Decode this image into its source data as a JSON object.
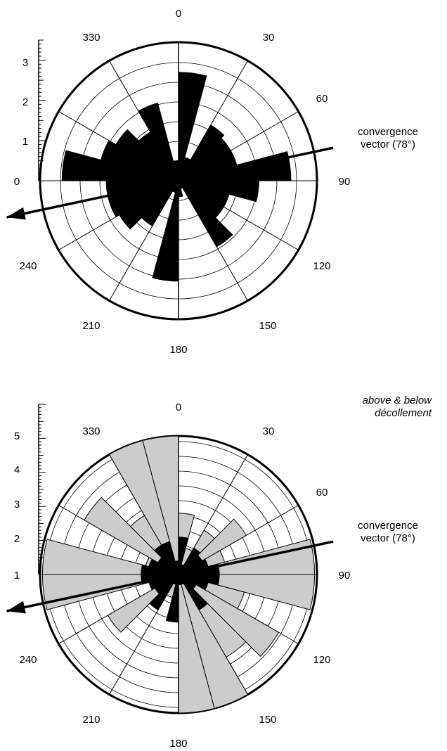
{
  "chart_data": [
    {
      "type": "rose",
      "angle_labels": [
        "0",
        "30",
        "60",
        "90",
        "120",
        "150",
        "180",
        "210",
        "240",
        "0",
        "330"
      ],
      "radial_ticks": [
        "3",
        "2",
        "1",
        "0"
      ],
      "radial_axis": {
        "min": 0,
        "max": 3.5
      },
      "bin_width_deg": 15,
      "series": [
        {
          "color": "#000000",
          "bins": [
            {
              "start": 0,
              "end": 15,
              "value": 2.7
            },
            {
              "start": 15,
              "end": 30,
              "value": 0.6
            },
            {
              "start": 30,
              "end": 45,
              "value": 1.6
            },
            {
              "start": 45,
              "end": 60,
              "value": 1.5
            },
            {
              "start": 60,
              "end": 75,
              "value": 1.5
            },
            {
              "start": 75,
              "end": 90,
              "value": 2.8
            },
            {
              "start": 90,
              "end": 105,
              "value": 2.0
            },
            {
              "start": 105,
              "end": 120,
              "value": 1.3
            },
            {
              "start": 120,
              "end": 135,
              "value": 1.3
            },
            {
              "start": 135,
              "end": 150,
              "value": 1.9
            },
            {
              "start": 150,
              "end": 165,
              "value": 0.2
            },
            {
              "start": 165,
              "end": 180,
              "value": 0.4
            },
            {
              "start": 180,
              "end": 195,
              "value": 2.5
            },
            {
              "start": 195,
              "end": 210,
              "value": 0.3
            },
            {
              "start": 210,
              "end": 225,
              "value": 1.3
            },
            {
              "start": 225,
              "end": 240,
              "value": 1.7
            },
            {
              "start": 240,
              "end": 255,
              "value": 1.8
            },
            {
              "start": 255,
              "end": 270,
              "value": 1.8
            },
            {
              "start": 270,
              "end": 285,
              "value": 2.9
            },
            {
              "start": 285,
              "end": 300,
              "value": 2.0
            },
            {
              "start": 300,
              "end": 315,
              "value": 1.8
            },
            {
              "start": 315,
              "end": 330,
              "value": 1.4
            },
            {
              "start": 330,
              "end": 345,
              "value": 2.0
            },
            {
              "start": 345,
              "end": 360,
              "value": 0.5
            }
          ]
        }
      ],
      "convergence_vector": {
        "label_line1": "convergence",
        "label_line2": "vector (78°)",
        "azimuth_deg": 78
      }
    },
    {
      "type": "rose",
      "subtitle_line1": "above & below",
      "subtitle_line2": "décollement",
      "angle_labels": [
        "0",
        "30",
        "60",
        "90",
        "120",
        "150",
        "180",
        "210",
        "240",
        "1",
        "330"
      ],
      "radial_ticks": [
        "5",
        "4",
        "3",
        "2",
        "1"
      ],
      "radial_axis": {
        "min": 0,
        "max": 5
      },
      "bin_width_deg": 15,
      "series": [
        {
          "color": "#cccccc",
          "bins": [
            {
              "start": 0,
              "end": 15,
              "value": 1.8
            },
            {
              "start": 15,
              "end": 30,
              "value": 0.8
            },
            {
              "start": 30,
              "end": 45,
              "value": 1.5
            },
            {
              "start": 45,
              "end": 60,
              "value": 2.3
            },
            {
              "start": 60,
              "end": 75,
              "value": 1.4
            },
            {
              "start": 75,
              "end": 90,
              "value": 4.0
            },
            {
              "start": 90,
              "end": 105,
              "value": 4.0
            },
            {
              "start": 105,
              "end": 120,
              "value": 2.0
            },
            {
              "start": 120,
              "end": 135,
              "value": 3.4
            },
            {
              "start": 135,
              "end": 150,
              "value": 2.8
            },
            {
              "start": 150,
              "end": 165,
              "value": 4.8
            },
            {
              "start": 165,
              "end": 180,
              "value": 4.8
            },
            {
              "start": 180,
              "end": 195,
              "value": 0.9
            },
            {
              "start": 195,
              "end": 210,
              "value": 0.7
            },
            {
              "start": 210,
              "end": 225,
              "value": 1.0
            },
            {
              "start": 225,
              "end": 240,
              "value": 2.4
            },
            {
              "start": 240,
              "end": 255,
              "value": 0.6
            },
            {
              "start": 255,
              "end": 270,
              "value": 4.0
            },
            {
              "start": 270,
              "end": 285,
              "value": 4.0
            },
            {
              "start": 285,
              "end": 300,
              "value": 1.0
            },
            {
              "start": 300,
              "end": 315,
              "value": 3.2
            },
            {
              "start": 315,
              "end": 330,
              "value": 2.0
            },
            {
              "start": 330,
              "end": 345,
              "value": 4.8
            },
            {
              "start": 345,
              "end": 360,
              "value": 4.8
            }
          ]
        },
        {
          "color": "#000000",
          "bins": [
            {
              "start": 0,
              "end": 15,
              "value": 1.1
            },
            {
              "start": 15,
              "end": 30,
              "value": 0.3
            },
            {
              "start": 30,
              "end": 45,
              "value": 0.9
            },
            {
              "start": 45,
              "end": 60,
              "value": 0.8
            },
            {
              "start": 60,
              "end": 75,
              "value": 0.9
            },
            {
              "start": 75,
              "end": 90,
              "value": 1.2
            },
            {
              "start": 90,
              "end": 105,
              "value": 1.2
            },
            {
              "start": 105,
              "end": 120,
              "value": 0.9
            },
            {
              "start": 120,
              "end": 135,
              "value": 0.6
            },
            {
              "start": 135,
              "end": 150,
              "value": 1.2
            },
            {
              "start": 150,
              "end": 165,
              "value": 0.3
            },
            {
              "start": 165,
              "end": 180,
              "value": 0.3
            },
            {
              "start": 180,
              "end": 195,
              "value": 1.4
            },
            {
              "start": 195,
              "end": 210,
              "value": 0.3
            },
            {
              "start": 210,
              "end": 225,
              "value": 1.2
            },
            {
              "start": 225,
              "end": 240,
              "value": 0.8
            },
            {
              "start": 240,
              "end": 255,
              "value": 0.9
            },
            {
              "start": 255,
              "end": 270,
              "value": 1.1
            },
            {
              "start": 270,
              "end": 285,
              "value": 1.1
            },
            {
              "start": 285,
              "end": 300,
              "value": 0.9
            },
            {
              "start": 300,
              "end": 315,
              "value": 0.7
            },
            {
              "start": 315,
              "end": 330,
              "value": 1.0
            },
            {
              "start": 330,
              "end": 345,
              "value": 1.0
            },
            {
              "start": 345,
              "end": 360,
              "value": 0.4
            }
          ]
        }
      ],
      "convergence_vector": {
        "label_line1": "convergence",
        "label_line2": "vector (78°)",
        "azimuth_deg": 78
      }
    }
  ]
}
